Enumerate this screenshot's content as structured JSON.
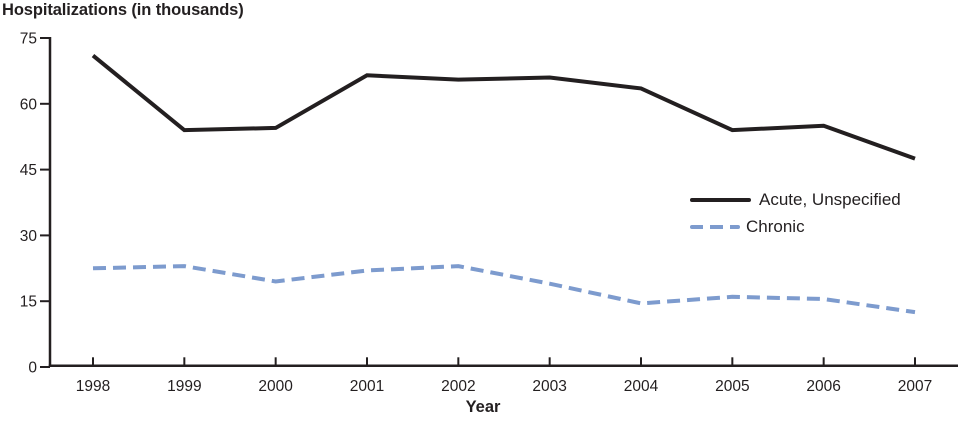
{
  "chart_data": {
    "type": "line",
    "title": "Hospitalizations (in thousands)",
    "xlabel": "Year",
    "ylabel": "",
    "ylim": [
      0,
      75
    ],
    "yticks": [
      0,
      15,
      30,
      45,
      60,
      75
    ],
    "x": [
      "1998",
      "1999",
      "2000",
      "2001",
      "2002",
      "2003",
      "2004",
      "2005",
      "2006",
      "2007"
    ],
    "series": [
      {
        "name": "Acute, Unspecified",
        "color": "#231f20",
        "line_style": "solid",
        "values": [
          71,
          54,
          54.5,
          66.5,
          65.5,
          66,
          63.5,
          54,
          55,
          47.5
        ]
      },
      {
        "name": "Chronic",
        "color": "#7d9bce",
        "line_style": "dashed",
        "values": [
          22.5,
          23,
          19.5,
          22,
          23,
          19,
          14.5,
          16,
          15.5,
          12.5
        ]
      }
    ],
    "axis_color": "#231f20",
    "text_color": "#231f20",
    "grid": false,
    "legend_position": "right-middle"
  }
}
